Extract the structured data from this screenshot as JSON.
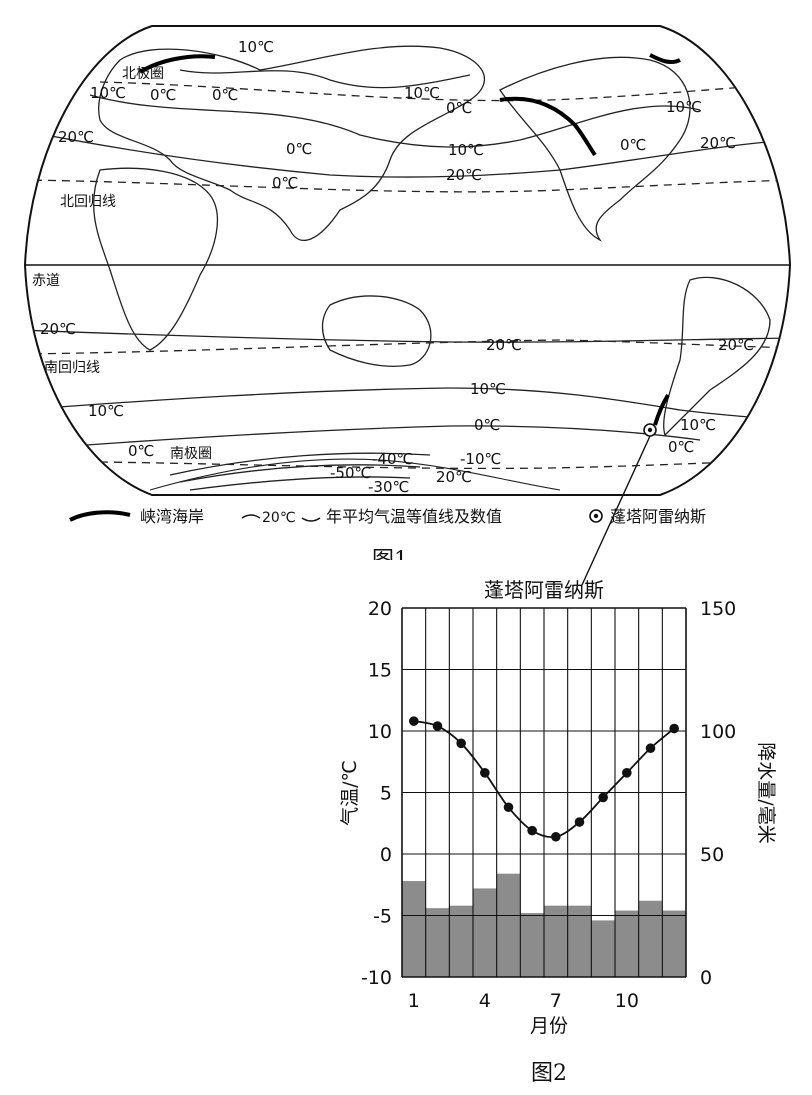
{
  "figure1": {
    "caption": "图1",
    "map_labels": {
      "arctic_circle": "北极圈",
      "tropic_cancer": "北回归线",
      "equator": "赤道",
      "tropic_capricorn": "南回归线",
      "antarctic_circle": "南极圈"
    },
    "isotherm_labels": [
      "10℃",
      "0℃",
      "10℃",
      "0℃",
      "10℃",
      "20℃",
      "0℃",
      "0℃",
      "0℃",
      "10℃",
      "20℃",
      "20℃",
      "10℃",
      "20℃",
      "20℃",
      "20℃",
      "10℃",
      "10℃",
      "0℃",
      "0℃",
      "10℃",
      "0℃",
      "-10℃",
      "-40℃",
      "-50℃",
      "-30℃",
      "20℃",
      "0℃"
    ],
    "legend": {
      "fjord_label": "峡湾海岸",
      "isotherm_symbol": "20℃",
      "isotherm_label": "年平均气温等值线及数值",
      "city_label": "蓬塔阿雷纳斯"
    }
  },
  "figure2": {
    "caption": "图2",
    "chart_data": {
      "type": "bar+line",
      "title": "蓬塔阿雷纳斯",
      "xlabel": "月份",
      "ylabel_left": "气温/℃",
      "ylabel_right": "降水量/毫米",
      "x": [
        1,
        2,
        3,
        4,
        5,
        6,
        7,
        8,
        9,
        10,
        11,
        12
      ],
      "x_tick_labels": [
        "1",
        "4",
        "7",
        "10"
      ],
      "x_tick_positions": [
        1,
        4,
        7,
        10
      ],
      "y_left_lim": [
        -10,
        20
      ],
      "y_left_ticks": [
        "20",
        "15",
        "10",
        "5",
        "0",
        "-5",
        "-10"
      ],
      "y_right_lim": [
        0,
        150
      ],
      "y_right_ticks": [
        "150",
        "100",
        "50",
        "0"
      ],
      "grid": true,
      "series": [
        {
          "values": [
            10.8,
            10.4,
            9.0,
            6.6,
            3.8,
            1.9,
            1.4,
            2.6,
            4.6,
            6.6,
            8.6,
            10.2
          ]
        },
        {
          "values": [
            39,
            28,
            29,
            36,
            42,
            26,
            29,
            29,
            23,
            27,
            31,
            27
          ]
        }
      ]
    }
  }
}
